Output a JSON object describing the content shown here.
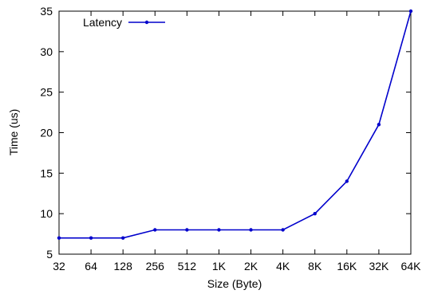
{
  "chart_data": {
    "type": "line",
    "title": "",
    "xlabel": "Size (Byte)",
    "ylabel": "Time (us)",
    "categories": [
      "32",
      "64",
      "128",
      "256",
      "512",
      "1K",
      "2K",
      "4K",
      "8K",
      "16K",
      "32K",
      "64K"
    ],
    "series": [
      {
        "name": "Latency",
        "values": [
          7,
          7,
          7,
          8,
          8,
          8,
          8,
          8,
          10,
          14,
          21,
          35
        ],
        "color": "#0000cc"
      }
    ],
    "ylim": [
      5,
      35
    ],
    "yticks": [
      5,
      10,
      15,
      20,
      25,
      30,
      35
    ],
    "grid": false,
    "legend": "top-left"
  }
}
